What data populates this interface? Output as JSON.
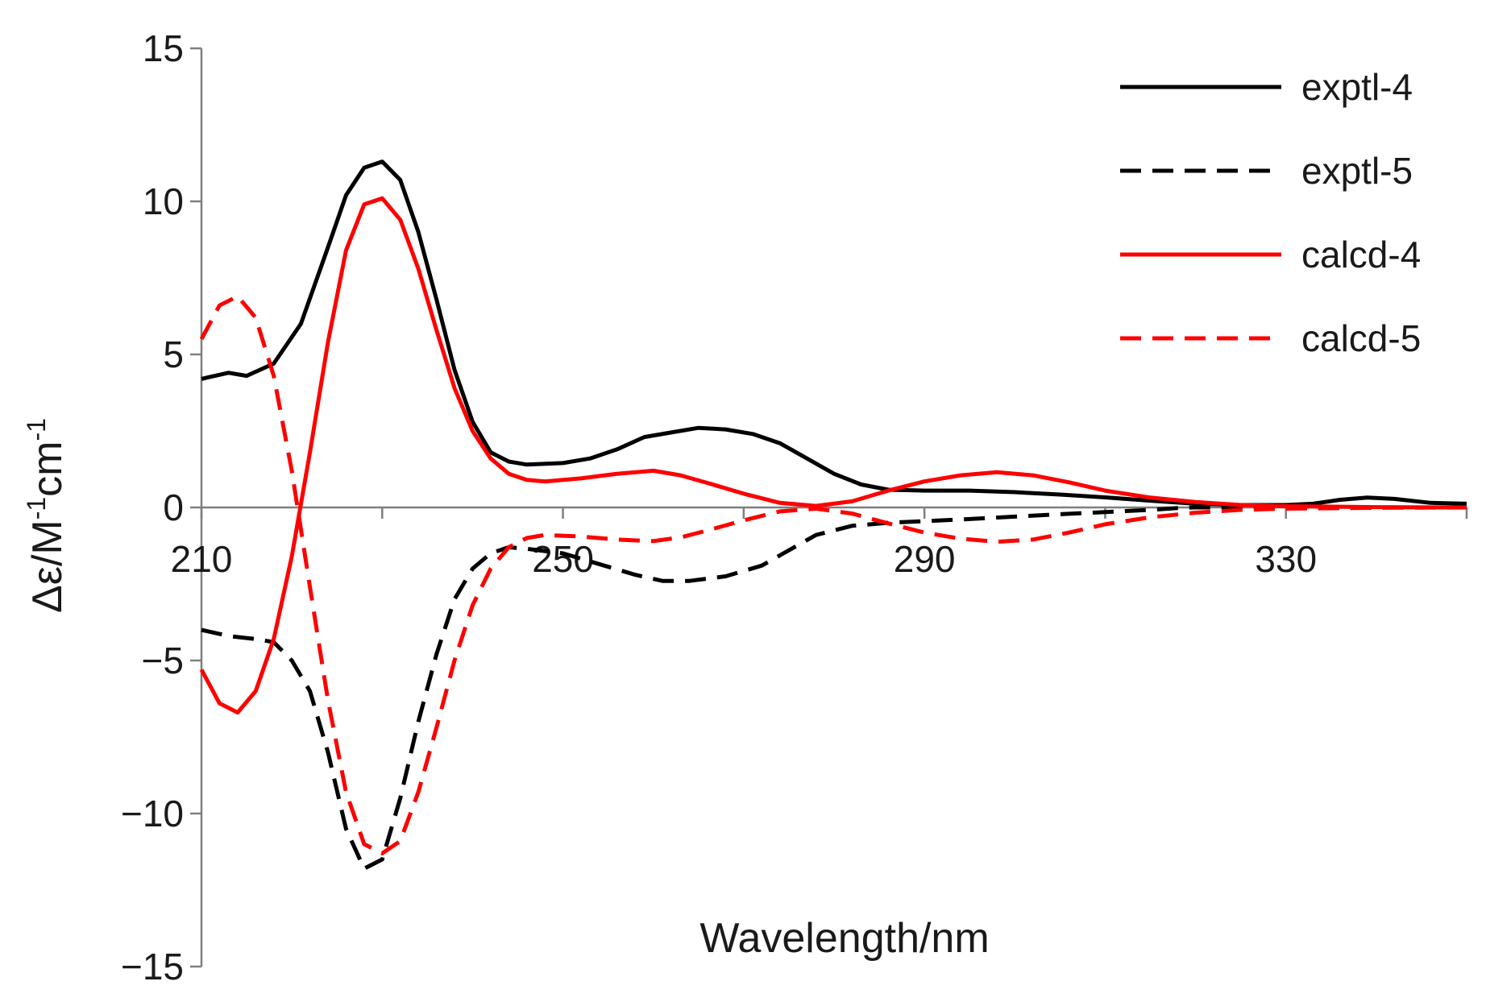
{
  "chart_data": {
    "type": "line",
    "xlabel": "Wavelength/nm",
    "ylabel_main": "Δε/M",
    "ylabel_sup1": "-1",
    "ylabel_mid": "cm",
    "ylabel_sup2": "-1",
    "xlim": [
      210,
      350
    ],
    "ylim": [
      -15,
      15
    ],
    "x_ticks": [
      210,
      250,
      290,
      330
    ],
    "y_ticks": [
      {
        "value": 15,
        "label": "15"
      },
      {
        "value": 10,
        "label": "10"
      },
      {
        "value": 5,
        "label": "5"
      },
      {
        "value": 0,
        "label": "0"
      },
      {
        "value": -5,
        "label": "−5"
      },
      {
        "value": -10,
        "label": "−10"
      },
      {
        "value": -15,
        "label": "−15"
      }
    ],
    "grid": false,
    "legend_position": "top-right",
    "series": [
      {
        "name": "exptl-4",
        "color": "#000000",
        "dash": "solid",
        "points": [
          [
            210,
            4.2
          ],
          [
            213,
            4.4
          ],
          [
            215,
            4.3
          ],
          [
            218,
            4.7
          ],
          [
            221,
            6.0
          ],
          [
            224,
            8.5
          ],
          [
            226,
            10.2
          ],
          [
            228,
            11.1
          ],
          [
            230,
            11.3
          ],
          [
            232,
            10.7
          ],
          [
            234,
            9.0
          ],
          [
            236,
            6.8
          ],
          [
            238,
            4.5
          ],
          [
            240,
            2.8
          ],
          [
            242,
            1.8
          ],
          [
            244,
            1.5
          ],
          [
            246,
            1.4
          ],
          [
            250,
            1.45
          ],
          [
            253,
            1.6
          ],
          [
            256,
            1.9
          ],
          [
            259,
            2.3
          ],
          [
            262,
            2.45
          ],
          [
            265,
            2.6
          ],
          [
            268,
            2.55
          ],
          [
            271,
            2.4
          ],
          [
            274,
            2.1
          ],
          [
            277,
            1.6
          ],
          [
            280,
            1.1
          ],
          [
            283,
            0.75
          ],
          [
            286,
            0.58
          ],
          [
            290,
            0.55
          ],
          [
            295,
            0.55
          ],
          [
            300,
            0.5
          ],
          [
            305,
            0.42
          ],
          [
            310,
            0.33
          ],
          [
            315,
            0.22
          ],
          [
            320,
            0.12
          ],
          [
            325,
            0.08
          ],
          [
            330,
            0.08
          ],
          [
            333,
            0.12
          ],
          [
            336,
            0.25
          ],
          [
            339,
            0.32
          ],
          [
            342,
            0.28
          ],
          [
            346,
            0.15
          ],
          [
            350,
            0.12
          ]
        ]
      },
      {
        "name": "exptl-5",
        "color": "#000000",
        "dash": "dashed",
        "points": [
          [
            210,
            -4.0
          ],
          [
            213,
            -4.2
          ],
          [
            216,
            -4.3
          ],
          [
            218,
            -4.4
          ],
          [
            220,
            -5.0
          ],
          [
            222,
            -6.0
          ],
          [
            224,
            -8.0
          ],
          [
            226,
            -10.5
          ],
          [
            228,
            -11.8
          ],
          [
            230,
            -11.5
          ],
          [
            232,
            -9.5
          ],
          [
            234,
            -7.0
          ],
          [
            236,
            -4.8
          ],
          [
            238,
            -3.0
          ],
          [
            240,
            -2.0
          ],
          [
            242,
            -1.5
          ],
          [
            244,
            -1.3
          ],
          [
            246,
            -1.35
          ],
          [
            250,
            -1.5
          ],
          [
            254,
            -1.85
          ],
          [
            258,
            -2.2
          ],
          [
            261,
            -2.4
          ],
          [
            264,
            -2.4
          ],
          [
            268,
            -2.25
          ],
          [
            272,
            -1.9
          ],
          [
            275,
            -1.4
          ],
          [
            278,
            -0.9
          ],
          [
            282,
            -0.6
          ],
          [
            286,
            -0.5
          ],
          [
            290,
            -0.45
          ],
          [
            295,
            -0.38
          ],
          [
            300,
            -0.3
          ],
          [
            305,
            -0.22
          ],
          [
            310,
            -0.15
          ],
          [
            315,
            -0.08
          ],
          [
            318,
            -0.02
          ],
          [
            320,
            0.0
          ],
          [
            350,
            0.0
          ]
        ]
      },
      {
        "name": "calcd-4",
        "color": "#ff0000",
        "dash": "solid",
        "points": [
          [
            210,
            -5.3
          ],
          [
            212,
            -6.4
          ],
          [
            214,
            -6.7
          ],
          [
            216,
            -6.0
          ],
          [
            218,
            -4.3
          ],
          [
            220,
            -1.6
          ],
          [
            222,
            1.8
          ],
          [
            224,
            5.4
          ],
          [
            226,
            8.4
          ],
          [
            228,
            9.9
          ],
          [
            230,
            10.1
          ],
          [
            232,
            9.4
          ],
          [
            234,
            7.8
          ],
          [
            236,
            5.8
          ],
          [
            238,
            3.9
          ],
          [
            240,
            2.5
          ],
          [
            242,
            1.6
          ],
          [
            244,
            1.1
          ],
          [
            246,
            0.9
          ],
          [
            248,
            0.85
          ],
          [
            252,
            0.95
          ],
          [
            256,
            1.1
          ],
          [
            260,
            1.2
          ],
          [
            263,
            1.05
          ],
          [
            266,
            0.8
          ],
          [
            270,
            0.45
          ],
          [
            274,
            0.15
          ],
          [
            278,
            0.05
          ],
          [
            282,
            0.2
          ],
          [
            286,
            0.55
          ],
          [
            290,
            0.85
          ],
          [
            294,
            1.05
          ],
          [
            298,
            1.15
          ],
          [
            302,
            1.05
          ],
          [
            306,
            0.82
          ],
          [
            310,
            0.55
          ],
          [
            315,
            0.32
          ],
          [
            320,
            0.18
          ],
          [
            325,
            0.08
          ],
          [
            330,
            0.04
          ],
          [
            340,
            0.01
          ],
          [
            350,
            0.0
          ]
        ]
      },
      {
        "name": "calcd-5",
        "color": "#ff0000",
        "dash": "dashed",
        "points": [
          [
            210,
            5.5
          ],
          [
            212,
            6.6
          ],
          [
            214,
            6.9
          ],
          [
            216,
            6.2
          ],
          [
            218,
            4.3
          ],
          [
            220,
            1.2
          ],
          [
            222,
            -2.6
          ],
          [
            224,
            -6.3
          ],
          [
            226,
            -9.3
          ],
          [
            228,
            -11.0
          ],
          [
            230,
            -11.3
          ],
          [
            232,
            -10.9
          ],
          [
            234,
            -9.3
          ],
          [
            236,
            -7.2
          ],
          [
            238,
            -5.0
          ],
          [
            240,
            -3.2
          ],
          [
            242,
            -2.0
          ],
          [
            244,
            -1.3
          ],
          [
            246,
            -1.0
          ],
          [
            248,
            -0.9
          ],
          [
            252,
            -0.95
          ],
          [
            256,
            -1.05
          ],
          [
            260,
            -1.1
          ],
          [
            263,
            -0.98
          ],
          [
            266,
            -0.75
          ],
          [
            270,
            -0.42
          ],
          [
            274,
            -0.13
          ],
          [
            278,
            -0.04
          ],
          [
            282,
            -0.2
          ],
          [
            286,
            -0.52
          ],
          [
            290,
            -0.82
          ],
          [
            294,
            -1.02
          ],
          [
            298,
            -1.12
          ],
          [
            302,
            -1.05
          ],
          [
            306,
            -0.82
          ],
          [
            310,
            -0.55
          ],
          [
            315,
            -0.32
          ],
          [
            320,
            -0.17
          ],
          [
            325,
            -0.08
          ],
          [
            330,
            -0.04
          ],
          [
            340,
            -0.01
          ],
          [
            350,
            0.0
          ]
        ]
      }
    ]
  }
}
